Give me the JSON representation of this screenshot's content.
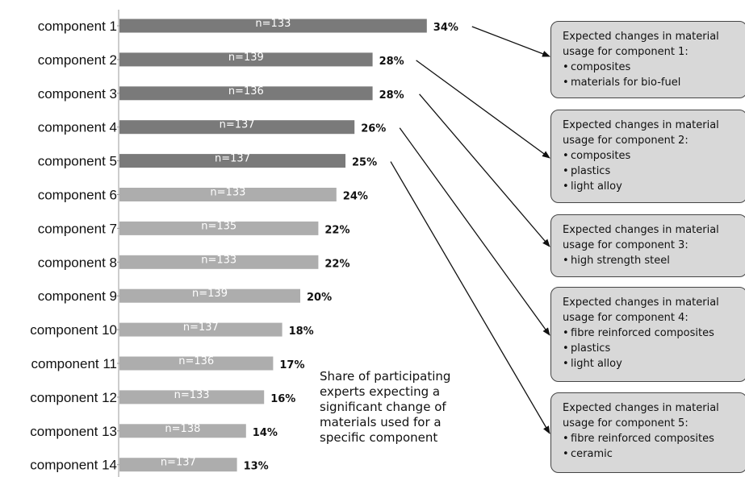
{
  "chart_data": {
    "type": "bar",
    "orientation": "horizontal",
    "categories": [
      "component 1",
      "component 2",
      "component 3",
      "component 4",
      "component 5",
      "component 6",
      "component 7",
      "component 8",
      "component 9",
      "component 10",
      "component 11",
      "component 12",
      "component 13",
      "component 14"
    ],
    "values": [
      34,
      28,
      28,
      26,
      25,
      24,
      22,
      22,
      20,
      18,
      17,
      16,
      14,
      13
    ],
    "value_labels": [
      "34%",
      "28%",
      "28%",
      "26%",
      "25%",
      "24%",
      "22%",
      "22%",
      "20%",
      "18%",
      "17%",
      "16%",
      "14%",
      "13%"
    ],
    "n_labels": [
      "n=133",
      "n=139",
      "n=136",
      "n=137",
      "n=137",
      "n=133",
      "n=135",
      "n=133",
      "n=139",
      "n=137",
      "n=136",
      "n=133",
      "n=138",
      "n=137"
    ],
    "highlighted_count": 5,
    "colors": {
      "highlighted": "#7a7a7a",
      "other": "#adadad",
      "arrow": "#111111"
    },
    "xlim": [
      0,
      34
    ],
    "grid": false,
    "legend": "none"
  },
  "note_lines": [
    "Share of participating",
    "experts expecting a",
    "significant change of",
    "materials used for a",
    "specific component"
  ],
  "boxes": [
    {
      "title": "Expected changes in material usage for component 1:",
      "items": [
        "composites",
        "materials for bio-fuel"
      ]
    },
    {
      "title": "Expected changes in material usage for component 2:",
      "items": [
        "composites",
        "plastics",
        "light alloy"
      ]
    },
    {
      "title": "Expected changes in material usage for component 3:",
      "items": [
        "high strength steel"
      ]
    },
    {
      "title": "Expected changes in material usage for component 4:",
      "items": [
        "fibre reinforced composites",
        "plastics",
        "light alloy"
      ]
    },
    {
      "title": "Expected changes in material usage for component 5:",
      "items": [
        "fibre reinforced composites",
        "ceramic"
      ]
    }
  ],
  "bullet_glyph": "•"
}
